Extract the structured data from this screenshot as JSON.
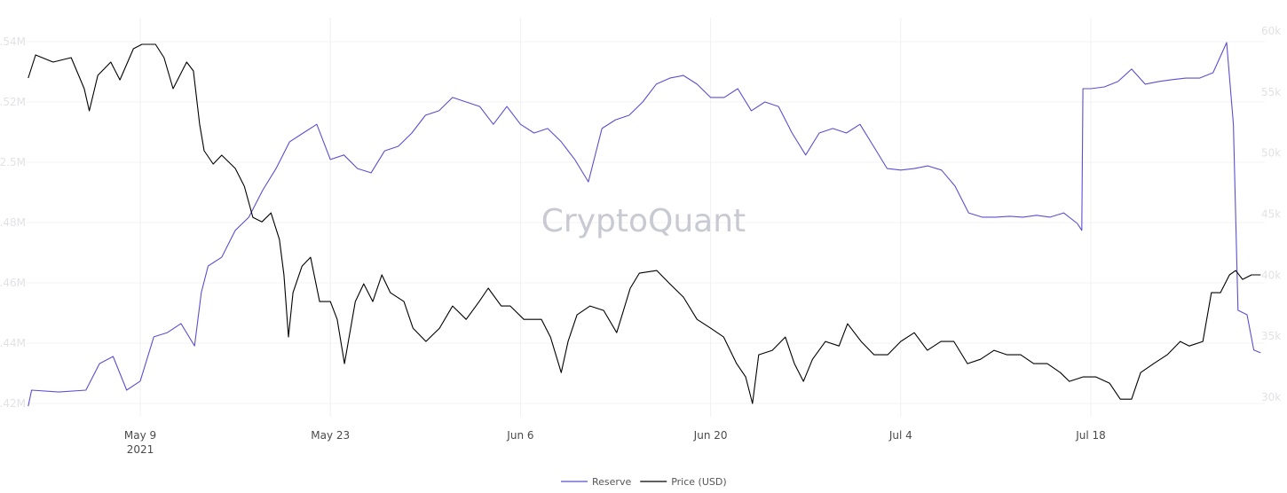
{
  "chart_data": {
    "type": "line",
    "watermark": "CryptoQuant",
    "x_ticks": [
      {
        "date": "2021-05-09",
        "label": "May 9",
        "sublabel": "2021"
      },
      {
        "date": "2021-05-23",
        "label": "May 23"
      },
      {
        "date": "2021-06-06",
        "label": "Jun 6"
      },
      {
        "date": "2021-06-20",
        "label": "Jun 20"
      },
      {
        "date": "2021-07-04",
        "label": "Jul 4"
      },
      {
        "date": "2021-07-18",
        "label": "Jul 18"
      }
    ],
    "y_left": {
      "ticks": [
        2.42,
        2.44,
        2.46,
        2.48,
        2.5,
        2.52,
        2.54
      ],
      "labels": [
        "2.42M",
        "2.44M",
        "2.46M",
        "2.48M",
        "2.5M",
        "2.52M",
        "2.54M"
      ]
    },
    "y_right": {
      "ticks": [
        30,
        35,
        40,
        45,
        50,
        55,
        60
      ],
      "labels": [
        "30k",
        "35k",
        "40k",
        "45k",
        "50k",
        "55k",
        "60k"
      ]
    },
    "grid": true,
    "legend_placement": "bottom-center",
    "series": [
      {
        "name": "Reserve",
        "axis": "left",
        "unit": "M",
        "color": "#5b4fd1",
        "points": [
          [
            "2021-04-30 18:00",
            2.4191
          ],
          [
            "2021-05-01",
            2.4244
          ],
          [
            "2021-05-03",
            2.4238
          ],
          [
            "2021-05-05",
            2.4244
          ],
          [
            "2021-05-06",
            2.4332
          ],
          [
            "2021-05-07",
            2.4356
          ],
          [
            "2021-05-08",
            2.4244
          ],
          [
            "2021-05-09",
            2.4274
          ],
          [
            "2021-05-10",
            2.4421
          ],
          [
            "2021-05-11",
            2.4435
          ],
          [
            "2021-05-12",
            2.4465
          ],
          [
            "2021-05-13",
            2.4391
          ],
          [
            "2021-05-13 12:00",
            2.4568
          ],
          [
            "2021-05-14",
            2.4656
          ],
          [
            "2021-05-15",
            2.4685
          ],
          [
            "2021-05-16",
            2.4774
          ],
          [
            "2021-05-17",
            2.4818
          ],
          [
            "2021-05-18",
            2.4906
          ],
          [
            "2021-05-19",
            2.4979
          ],
          [
            "2021-05-20",
            2.5068
          ],
          [
            "2021-05-21",
            2.5097
          ],
          [
            "2021-05-22",
            2.5126
          ],
          [
            "2021-05-23",
            2.5009
          ],
          [
            "2021-05-24",
            2.5024
          ],
          [
            "2021-05-25",
            2.4979
          ],
          [
            "2021-05-26",
            2.4965
          ],
          [
            "2021-05-27",
            2.5038
          ],
          [
            "2021-05-28",
            2.5053
          ],
          [
            "2021-05-29",
            2.5097
          ],
          [
            "2021-05-30",
            2.5156
          ],
          [
            "2021-05-31",
            2.5171
          ],
          [
            "2021-06-01",
            2.5215
          ],
          [
            "2021-06-02",
            2.52
          ],
          [
            "2021-06-03",
            2.5185
          ],
          [
            "2021-06-04",
            2.5126
          ],
          [
            "2021-06-05",
            2.5185
          ],
          [
            "2021-06-06",
            2.5126
          ],
          [
            "2021-06-07",
            2.5097
          ],
          [
            "2021-06-08",
            2.5112
          ],
          [
            "2021-06-09",
            2.5068
          ],
          [
            "2021-06-10",
            2.5009
          ],
          [
            "2021-06-11",
            2.4935
          ],
          [
            "2021-06-12",
            2.5112
          ],
          [
            "2021-06-13",
            2.5141
          ],
          [
            "2021-06-14",
            2.5156
          ],
          [
            "2021-06-15",
            2.52
          ],
          [
            "2021-06-16",
            2.5259
          ],
          [
            "2021-06-17",
            2.5279
          ],
          [
            "2021-06-18",
            2.5288
          ],
          [
            "2021-06-19",
            2.5259
          ],
          [
            "2021-06-20",
            2.5215
          ],
          [
            "2021-06-21",
            2.5215
          ],
          [
            "2021-06-22",
            2.5244
          ],
          [
            "2021-06-23",
            2.5171
          ],
          [
            "2021-06-24",
            2.52
          ],
          [
            "2021-06-25",
            2.5185
          ],
          [
            "2021-06-26",
            2.5097
          ],
          [
            "2021-06-27",
            2.5024
          ],
          [
            "2021-06-28",
            2.5097
          ],
          [
            "2021-06-29",
            2.5112
          ],
          [
            "2021-06-30",
            2.5097
          ],
          [
            "2021-07-01",
            2.5126
          ],
          [
            "2021-07-02",
            2.5053
          ],
          [
            "2021-07-03",
            2.4979
          ],
          [
            "2021-07-04",
            2.4974
          ],
          [
            "2021-07-05",
            2.4979
          ],
          [
            "2021-07-06",
            2.4988
          ],
          [
            "2021-07-07",
            2.4974
          ],
          [
            "2021-07-08",
            2.4921
          ],
          [
            "2021-07-09",
            2.4832
          ],
          [
            "2021-07-10",
            2.4818
          ],
          [
            "2021-07-11",
            2.4818
          ],
          [
            "2021-07-12",
            2.4821
          ],
          [
            "2021-07-13",
            2.4818
          ],
          [
            "2021-07-14",
            2.4824
          ],
          [
            "2021-07-15",
            2.4818
          ],
          [
            "2021-07-16",
            2.4832
          ],
          [
            "2021-07-17",
            2.4797
          ],
          [
            "2021-07-17 08:00",
            2.4774
          ],
          [
            "2021-07-17 10:00",
            2.5244
          ],
          [
            "2021-07-18",
            2.5244
          ],
          [
            "2021-07-19",
            2.525
          ],
          [
            "2021-07-20",
            2.5268
          ],
          [
            "2021-07-21",
            2.5309
          ],
          [
            "2021-07-22",
            2.5259
          ],
          [
            "2021-07-23",
            2.5268
          ],
          [
            "2021-07-24",
            2.5274
          ],
          [
            "2021-07-25",
            2.5279
          ],
          [
            "2021-07-26",
            2.5279
          ],
          [
            "2021-07-27",
            2.5297
          ],
          [
            "2021-07-28",
            2.5397
          ],
          [
            "2021-07-28 12:00",
            2.5126
          ],
          [
            "2021-07-28 20:00",
            2.4509
          ],
          [
            "2021-07-29 12:00",
            2.4494
          ],
          [
            "2021-07-30",
            2.4377
          ],
          [
            "2021-07-30 12:00",
            2.4368
          ]
        ]
      },
      {
        "name": "Price (USD)",
        "axis": "right",
        "unit": "k",
        "color": "#000000",
        "points": [
          [
            "2021-04-30 18:00",
            56.15
          ],
          [
            "2021-05-01 07:00",
            58.04
          ],
          [
            "2021-05-02 14:00",
            57.46
          ],
          [
            "2021-05-03 22:00",
            57.82
          ],
          [
            "2021-05-04 21:00",
            55.28
          ],
          [
            "2021-05-05 06:00",
            53.46
          ],
          [
            "2021-05-05 21:00",
            56.37
          ],
          [
            "2021-05-06 20:00",
            57.46
          ],
          [
            "2021-05-07 12:00",
            56.0
          ],
          [
            "2021-05-08 12:00",
            58.55
          ],
          [
            "2021-05-09 03:00",
            58.91
          ],
          [
            "2021-05-10 03:00",
            58.91
          ],
          [
            "2021-05-10 18:00",
            57.82
          ],
          [
            "2021-05-11 10:00",
            55.28
          ],
          [
            "2021-05-12 10:00",
            57.46
          ],
          [
            "2021-05-12 22:00",
            56.73
          ],
          [
            "2021-05-13 09:00",
            52.37
          ],
          [
            "2021-05-13 17:00",
            50.19
          ],
          [
            "2021-05-14 09:00",
            49.1
          ],
          [
            "2021-05-15 00:00",
            49.83
          ],
          [
            "2021-05-16 00:00",
            48.74
          ],
          [
            "2021-05-16 16:00",
            47.28
          ],
          [
            "2021-05-17 07:00",
            44.74
          ],
          [
            "2021-05-17 23:00",
            44.37
          ],
          [
            "2021-05-18 15:00",
            45.1
          ],
          [
            "2021-05-19 06:00",
            42.92
          ],
          [
            "2021-05-19 14:00",
            40.02
          ],
          [
            "2021-05-19 22:00",
            34.93
          ],
          [
            "2021-05-20 06:00",
            38.56
          ],
          [
            "2021-05-20 22:00",
            40.74
          ],
          [
            "2021-05-21 13:00",
            41.47
          ],
          [
            "2021-05-22 05:00",
            37.84
          ],
          [
            "2021-05-23 00:00",
            37.84
          ],
          [
            "2021-05-23 12:00",
            36.38
          ],
          [
            "2021-05-24 01:00",
            32.75
          ],
          [
            "2021-05-24 20:00",
            37.84
          ],
          [
            "2021-05-25 11:00",
            39.29
          ],
          [
            "2021-05-26 03:00",
            37.84
          ],
          [
            "2021-05-26 19:00",
            40.02
          ],
          [
            "2021-05-27 10:00",
            38.56
          ],
          [
            "2021-05-28 10:00",
            37.84
          ],
          [
            "2021-05-29 02:00",
            35.66
          ],
          [
            "2021-05-30 01:00",
            34.57
          ],
          [
            "2021-05-31 01:00",
            35.66
          ],
          [
            "2021-06-01 00:00",
            37.47
          ],
          [
            "2021-06-02 00:00",
            36.38
          ],
          [
            "2021-06-02 23:00",
            37.84
          ],
          [
            "2021-06-03 15:00",
            38.93
          ],
          [
            "2021-06-04 14:00",
            37.47
          ],
          [
            "2021-06-05 06:00",
            37.47
          ],
          [
            "2021-06-06 06:00",
            36.38
          ],
          [
            "2021-06-07 13:00",
            36.38
          ],
          [
            "2021-06-08 05:00",
            34.93
          ],
          [
            "2021-06-09 00:00",
            32.02
          ],
          [
            "2021-06-09 12:00",
            34.57
          ],
          [
            "2021-06-10 04:00",
            36.75
          ],
          [
            "2021-06-11 03:00",
            37.47
          ],
          [
            "2021-06-12 03:00",
            37.11
          ],
          [
            "2021-06-13 02:00",
            35.29
          ],
          [
            "2021-06-14 02:00",
            38.93
          ],
          [
            "2021-06-14 18:00",
            40.16
          ],
          [
            "2021-06-16 01:00",
            40.38
          ],
          [
            "2021-06-17 00:00",
            39.29
          ],
          [
            "2021-06-18 00:00",
            38.2
          ],
          [
            "2021-06-19 00:00",
            36.38
          ],
          [
            "2021-06-20 00:00",
            35.66
          ],
          [
            "2021-06-20 23:00",
            34.93
          ],
          [
            "2021-06-21 22:00",
            32.75
          ],
          [
            "2021-06-22 14:00",
            31.66
          ],
          [
            "2021-06-23 02:00",
            29.48
          ],
          [
            "2021-06-23 13:00",
            33.48
          ],
          [
            "2021-06-24 13:00",
            33.84
          ],
          [
            "2021-06-25 12:00",
            34.93
          ],
          [
            "2021-06-26 04:00",
            32.75
          ],
          [
            "2021-06-26 20:00",
            31.3
          ],
          [
            "2021-06-27 12:00",
            33.11
          ],
          [
            "2021-06-28 11:00",
            34.57
          ],
          [
            "2021-06-29 11:00",
            34.2
          ],
          [
            "2021-06-30 02:00",
            36.02
          ],
          [
            "2021-07-01 02:00",
            34.57
          ],
          [
            "2021-07-02 01:00",
            33.48
          ],
          [
            "2021-07-03 01:00",
            33.48
          ],
          [
            "2021-07-04 00:00",
            34.57
          ],
          [
            "2021-07-05 00:00",
            35.29
          ],
          [
            "2021-07-05 23:00",
            33.84
          ],
          [
            "2021-07-06 23:00",
            34.57
          ],
          [
            "2021-07-07 22:00",
            34.57
          ],
          [
            "2021-07-08 22:00",
            32.75
          ],
          [
            "2021-07-09 21:00",
            33.11
          ],
          [
            "2021-07-10 21:00",
            33.84
          ],
          [
            "2021-07-11 20:00",
            33.48
          ],
          [
            "2021-07-12 20:00",
            33.48
          ],
          [
            "2021-07-13 19:00",
            32.75
          ],
          [
            "2021-07-14 19:00",
            32.75
          ],
          [
            "2021-07-15 18:00",
            32.02
          ],
          [
            "2021-07-16 10:00",
            31.3
          ],
          [
            "2021-07-17 10:00",
            31.66
          ],
          [
            "2021-07-18 09:00",
            31.66
          ],
          [
            "2021-07-19 09:00",
            31.15
          ],
          [
            "2021-07-20 04:00",
            29.84
          ],
          [
            "2021-07-21 00:00",
            29.84
          ],
          [
            "2021-07-21 16:00",
            32.02
          ],
          [
            "2021-07-22 15:00",
            32.75
          ],
          [
            "2021-07-23 15:00",
            33.48
          ],
          [
            "2021-07-24 14:00",
            34.57
          ],
          [
            "2021-07-25 06:00",
            34.2
          ],
          [
            "2021-07-26 06:00",
            34.57
          ],
          [
            "2021-07-26 21:00",
            38.56
          ],
          [
            "2021-07-27 13:00",
            38.56
          ],
          [
            "2021-07-28 05:00",
            40.02
          ],
          [
            "2021-07-28 16:00",
            40.38
          ],
          [
            "2021-07-29 04:00",
            39.65
          ],
          [
            "2021-07-29 20:00",
            40.02
          ],
          [
            "2021-07-30 12:00",
            40.02
          ]
        ]
      }
    ]
  }
}
